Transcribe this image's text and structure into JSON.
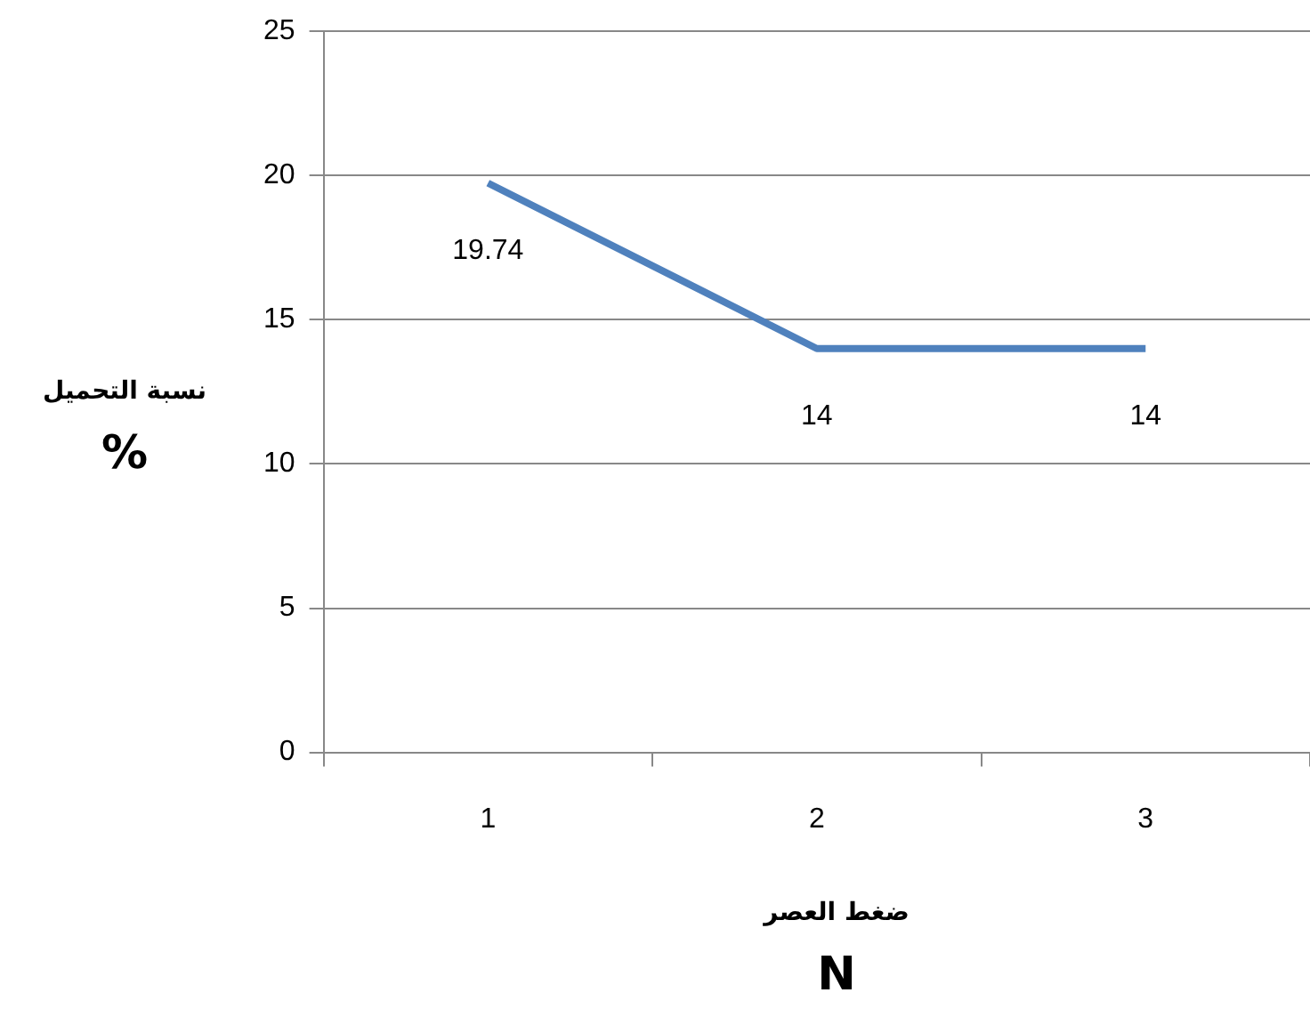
{
  "chart_data": {
    "type": "line",
    "categories": [
      "1",
      "2",
      "3"
    ],
    "series": [
      {
        "color": "#4f81bd",
        "values": [
          19.74,
          14,
          14
        ]
      }
    ],
    "ylim": [
      0,
      25
    ],
    "yticks": [
      0,
      5,
      10,
      15,
      20,
      25
    ],
    "grid": "y",
    "legend": false,
    "marker": "none",
    "line_style": "solid",
    "data_labels": true,
    "xlabel": "ضغط العصر\nN",
    "ylabel": "نسبة التحميل\n%"
  }
}
